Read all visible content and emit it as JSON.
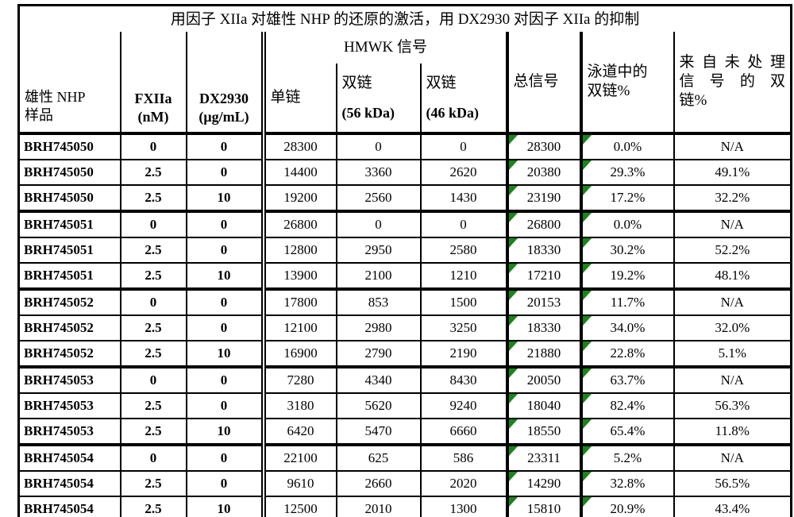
{
  "colors": {
    "flag_green": "#178717",
    "line_black": "#000000"
  },
  "table": {
    "title": "用因子 XIIa 对雄性 NHP 的还原的激活，用 DX2930 对因子 XIIa 的抑制",
    "headers": {
      "sample": [
        "雄性 NHP",
        "样品"
      ],
      "fxiia": [
        "FXIIa",
        "(nM)"
      ],
      "dx2930": [
        "DX2930",
        "(μg/mL)"
      ],
      "hmwk_group": "HMWK 信号",
      "single_chain": "单链",
      "double_chain_56": [
        "双链",
        "(56 kDa)"
      ],
      "double_chain_46": [
        "双链",
        "(46 kDa)"
      ],
      "total_signal": "总信号",
      "lane_double_pct": [
        "泳道中的",
        "双链%"
      ],
      "untreated_double_pct": [
        "来自未处理",
        "信号的双",
        "链%"
      ]
    },
    "rows": [
      {
        "sample": "BRH745050",
        "fxiia": "0",
        "dx2930": "0",
        "single_chain": "28300",
        "double_56": "0",
        "double_46": "0",
        "total": "28300",
        "lane_pct": "0.0%",
        "untreated_pct": "N/A"
      },
      {
        "sample": "BRH745050",
        "fxiia": "2.5",
        "dx2930": "0",
        "single_chain": "14400",
        "double_56": "3360",
        "double_46": "2620",
        "total": "20380",
        "lane_pct": "29.3%",
        "untreated_pct": "49.1%"
      },
      {
        "sample": "BRH745050",
        "fxiia": "2.5",
        "dx2930": "10",
        "single_chain": "19200",
        "double_56": "2560",
        "double_46": "1430",
        "total": "23190",
        "lane_pct": "17.2%",
        "untreated_pct": "32.2%"
      },
      {
        "sample": "BRH745051",
        "fxiia": "0",
        "dx2930": "0",
        "single_chain": "26800",
        "double_56": "0",
        "double_46": "0",
        "total": "26800",
        "lane_pct": "0.0%",
        "untreated_pct": "N/A"
      },
      {
        "sample": "BRH745051",
        "fxiia": "2.5",
        "dx2930": "0",
        "single_chain": "12800",
        "double_56": "2950",
        "double_46": "2580",
        "total": "18330",
        "lane_pct": "30.2%",
        "untreated_pct": "52.2%"
      },
      {
        "sample": "BRH745051",
        "fxiia": "2.5",
        "dx2930": "10",
        "single_chain": "13900",
        "double_56": "2100",
        "double_46": "1210",
        "total": "17210",
        "lane_pct": "19.2%",
        "untreated_pct": "48.1%"
      },
      {
        "sample": "BRH745052",
        "fxiia": "0",
        "dx2930": "0",
        "single_chain": "17800",
        "double_56": "853",
        "double_46": "1500",
        "total": "20153",
        "lane_pct": "11.7%",
        "untreated_pct": "N/A"
      },
      {
        "sample": "BRH745052",
        "fxiia": "2.5",
        "dx2930": "0",
        "single_chain": "12100",
        "double_56": "2980",
        "double_46": "3250",
        "total": "18330",
        "lane_pct": "34.0%",
        "untreated_pct": "32.0%"
      },
      {
        "sample": "BRH745052",
        "fxiia": "2.5",
        "dx2930": "10",
        "single_chain": "16900",
        "double_56": "2790",
        "double_46": "2190",
        "total": "21880",
        "lane_pct": "22.8%",
        "untreated_pct": "5.1%"
      },
      {
        "sample": "BRH745053",
        "fxiia": "0",
        "dx2930": "0",
        "single_chain": "7280",
        "double_56": "4340",
        "double_46": "8430",
        "total": "20050",
        "lane_pct": "63.7%",
        "untreated_pct": "N/A"
      },
      {
        "sample": "BRH745053",
        "fxiia": "2.5",
        "dx2930": "0",
        "single_chain": "3180",
        "double_56": "5620",
        "double_46": "9240",
        "total": "18040",
        "lane_pct": "82.4%",
        "untreated_pct": "56.3%"
      },
      {
        "sample": "BRH745053",
        "fxiia": "2.5",
        "dx2930": "10",
        "single_chain": "6420",
        "double_56": "5470",
        "double_46": "6660",
        "total": "18550",
        "lane_pct": "65.4%",
        "untreated_pct": "11.8%"
      },
      {
        "sample": "BRH745054",
        "fxiia": "0",
        "dx2930": "0",
        "single_chain": "22100",
        "double_56": "625",
        "double_46": "586",
        "total": "23311",
        "lane_pct": "5.2%",
        "untreated_pct": "N/A"
      },
      {
        "sample": "BRH745054",
        "fxiia": "2.5",
        "dx2930": "0",
        "single_chain": "9610",
        "double_56": "2660",
        "double_46": "2020",
        "total": "14290",
        "lane_pct": "32.8%",
        "untreated_pct": "56.5%"
      },
      {
        "sample": "BRH745054",
        "fxiia": "2.5",
        "dx2930": "10",
        "single_chain": "12500",
        "double_56": "2010",
        "double_46": "1300",
        "total": "15810",
        "lane_pct": "20.9%",
        "untreated_pct": "43.4%"
      }
    ]
  }
}
